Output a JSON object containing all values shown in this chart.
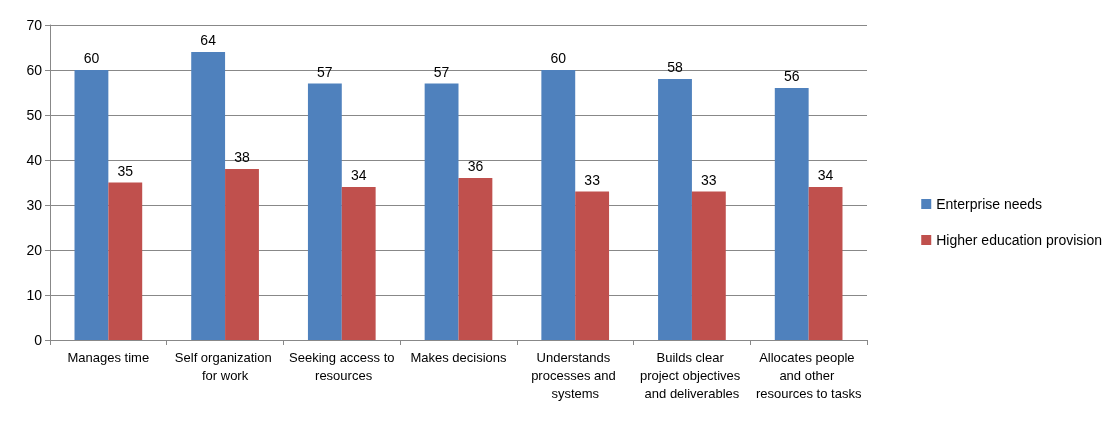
{
  "chart_data": {
    "type": "bar",
    "categories": [
      "Manages time",
      "Self organization for work",
      "Seeking access to resources",
      "Makes decisions",
      "Understands processes and systems",
      "Builds clear project objectives and deliverables",
      "Allocates people and other resources to tasks"
    ],
    "series": [
      {
        "name": "Enterprise needs",
        "color": "#4f81bd",
        "values": [
          60,
          64,
          57,
          57,
          60,
          58,
          56
        ]
      },
      {
        "name": "Higher education provision",
        "color": "#c0504d",
        "values": [
          35,
          38,
          34,
          36,
          33,
          33,
          34
        ]
      }
    ],
    "ylim": [
      0,
      70
    ],
    "yticks": [
      0,
      10,
      20,
      30,
      40,
      50,
      60,
      70
    ],
    "grid": "y",
    "legend": "right",
    "data_labels": true
  }
}
